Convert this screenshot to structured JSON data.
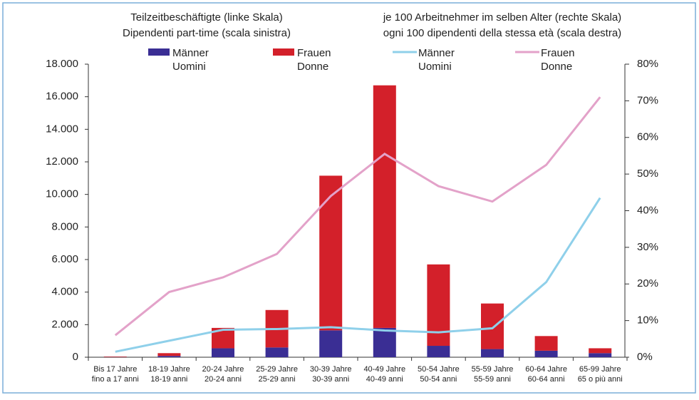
{
  "chart_data": {
    "type": "bar_line",
    "legend_titles": [
      [
        "Teilzeitbeschäftigte (linke Skala)",
        "Dipendenti part-time (scala sinistra)"
      ],
      [
        "je 100 Arbeitnehmer im selben Alter (rechte Skala)",
        "ogni 100 dipendenti della stessa età (scala destra)"
      ]
    ],
    "categories": [
      [
        "Bis 17 Jahre",
        "fino a 17 anni"
      ],
      [
        "18-19 Jahre",
        "18-19 anni"
      ],
      [
        "20-24 Jahre",
        "20-24 anni"
      ],
      [
        "25-29 Jahre",
        "25-29 anni"
      ],
      [
        "30-39 Jahre",
        "30-39 anni"
      ],
      [
        "40-49 Jahre",
        "40-49 anni"
      ],
      [
        "50-54 Jahre",
        "50-54 anni"
      ],
      [
        "55-59 Jahre",
        "55-59 anni"
      ],
      [
        "60-64 Jahre",
        "60-64 anni"
      ],
      [
        "65-99 Jahre",
        "65 o più anni"
      ]
    ],
    "series": [
      {
        "name": [
          "Männer",
          "Uomini"
        ],
        "color": "#3a2e94",
        "kind": "bar",
        "values": [
          10,
          80,
          550,
          600,
          1650,
          1800,
          700,
          500,
          400,
          250
        ]
      },
      {
        "name": [
          "Frauen",
          "Donne"
        ],
        "color": "#d3202a",
        "kind": "bar",
        "values": [
          30,
          170,
          1250,
          2300,
          9500,
          14900,
          5000,
          2800,
          900,
          300
        ]
      },
      {
        "name": [
          "Männer",
          "Uomini"
        ],
        "color": "#8fd0ea",
        "kind": "line",
        "axis": "y2",
        "values": [
          1.5,
          4.5,
          7.5,
          7.7,
          8.2,
          7.3,
          6.8,
          7.9,
          20.5,
          43.5
        ]
      },
      {
        "name": [
          "Frauen",
          "Donne"
        ],
        "color": "#e3a2c9",
        "kind": "line",
        "axis": "y2",
        "values": [
          6,
          17.8,
          21.8,
          28.2,
          44,
          55.5,
          46.7,
          42.5,
          52.5,
          71
        ]
      }
    ],
    "ylim": [
      0,
      18000
    ],
    "yticks": [
      0,
      {
        "value": 2000,
        "label": "2.000"
      },
      {
        "value": 4000,
        "label": "4.000"
      },
      {
        "value": 6000,
        "label": "6.000"
      },
      {
        "value": 8000,
        "label": "8.000"
      },
      {
        "value": 10000,
        "label": "10.000"
      },
      {
        "value": 12000,
        "label": "12.000"
      },
      {
        "value": 14000,
        "label": "14.000"
      },
      {
        "value": 16000,
        "label": "16.000"
      },
      {
        "value": 18000,
        "label": "18.000"
      }
    ],
    "y2lim": [
      0,
      80
    ],
    "y2ticks": [
      {
        "value": 0,
        "label": "0%"
      },
      {
        "value": 10,
        "label": "10%"
      },
      {
        "value": 20,
        "label": "20%"
      },
      {
        "value": 30,
        "label": "30%"
      },
      {
        "value": 40,
        "label": "40%"
      },
      {
        "value": 50,
        "label": "50%"
      },
      {
        "value": 60,
        "label": "60%"
      },
      {
        "value": 70,
        "label": "70%"
      },
      {
        "value": 80,
        "label": "80%"
      }
    ]
  }
}
